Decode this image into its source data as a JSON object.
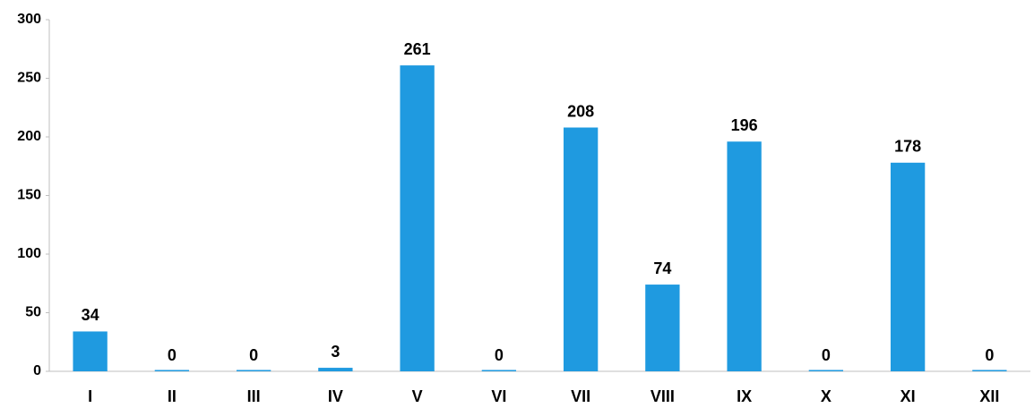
{
  "chart_data": {
    "type": "bar",
    "categories": [
      "I",
      "II",
      "III",
      "IV",
      "V",
      "VI",
      "VII",
      "VIII",
      "IX",
      "X",
      "XI",
      "XII"
    ],
    "values": [
      34,
      0,
      0,
      3,
      261,
      0,
      208,
      74,
      196,
      0,
      178,
      0
    ],
    "color": "#1f9ae0",
    "ylim": [
      0,
      300
    ],
    "yticks": [
      0,
      50,
      100,
      150,
      200,
      250,
      300
    ],
    "grid": false
  }
}
